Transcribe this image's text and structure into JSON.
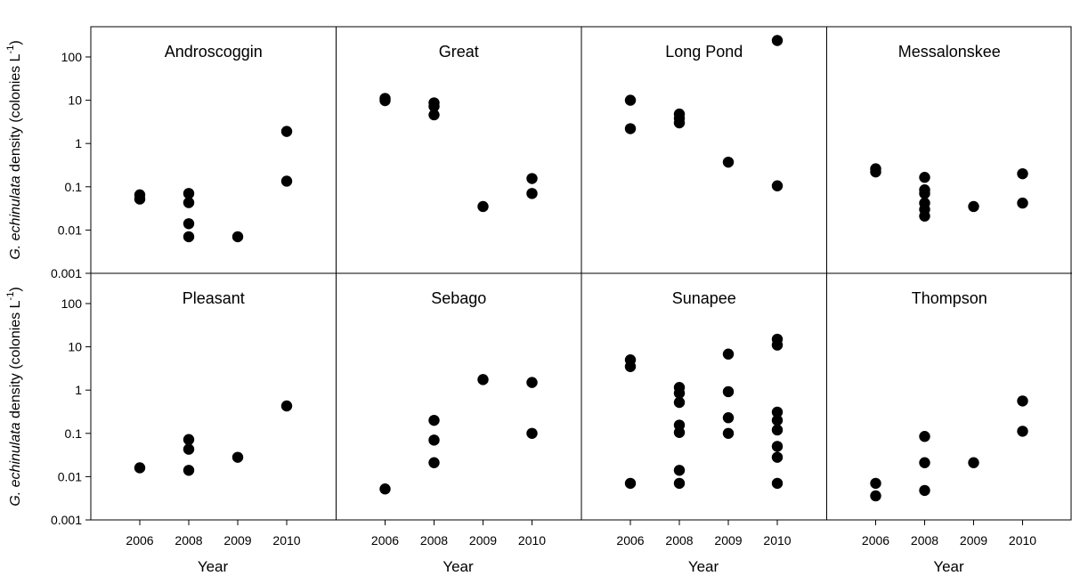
{
  "chart_data": {
    "type": "scatter",
    "y_scale": "log",
    "ylim": [
      0.001,
      500
    ],
    "y_ticks": [
      "0.001",
      "0.01",
      "0.1",
      "1",
      "10",
      "100"
    ],
    "x_categories": [
      "2006",
      "2008",
      "2009",
      "2010"
    ],
    "xlabel": "Year",
    "ylabel": "G. echinulata density (colonies L-1)",
    "grid": false,
    "legend": "none",
    "marker_color": "#000000",
    "panels": [
      {
        "title": "Androscoggin",
        "points": [
          {
            "x": "2006",
            "y": 0.065
          },
          {
            "x": "2006",
            "y": 0.052
          },
          {
            "x": "2008",
            "y": 0.07
          },
          {
            "x": "2008",
            "y": 0.043
          },
          {
            "x": "2008",
            "y": 0.014
          },
          {
            "x": "2008",
            "y": 0.007
          },
          {
            "x": "2009",
            "y": 0.007
          },
          {
            "x": "2010",
            "y": 1.9
          },
          {
            "x": "2010",
            "y": 0.135
          }
        ]
      },
      {
        "title": "Great",
        "points": [
          {
            "x": "2006",
            "y": 11
          },
          {
            "x": "2006",
            "y": 9.8
          },
          {
            "x": "2008",
            "y": 8.7
          },
          {
            "x": "2008",
            "y": 7.2
          },
          {
            "x": "2008",
            "y": 4.6
          },
          {
            "x": "2009",
            "y": 0.035
          },
          {
            "x": "2010",
            "y": 0.155
          },
          {
            "x": "2010",
            "y": 0.07
          }
        ]
      },
      {
        "title": "Long Pond",
        "points": [
          {
            "x": "2006",
            "y": 10
          },
          {
            "x": "2006",
            "y": 2.2
          },
          {
            "x": "2008",
            "y": 4.8
          },
          {
            "x": "2008",
            "y": 3.8
          },
          {
            "x": "2008",
            "y": 3.0
          },
          {
            "x": "2009",
            "y": 0.37
          },
          {
            "x": "2010",
            "y": 240
          },
          {
            "x": "2010",
            "y": 0.105
          }
        ]
      },
      {
        "title": "Messalonskee",
        "points": [
          {
            "x": "2006",
            "y": 0.26
          },
          {
            "x": "2006",
            "y": 0.22
          },
          {
            "x": "2008",
            "y": 0.165
          },
          {
            "x": "2008",
            "y": 0.085
          },
          {
            "x": "2008",
            "y": 0.07
          },
          {
            "x": "2008",
            "y": 0.042
          },
          {
            "x": "2008",
            "y": 0.03
          },
          {
            "x": "2008",
            "y": 0.021
          },
          {
            "x": "2009",
            "y": 0.035
          },
          {
            "x": "2010",
            "y": 0.2
          },
          {
            "x": "2010",
            "y": 0.042
          }
        ]
      },
      {
        "title": "Pleasant",
        "points": [
          {
            "x": "2006",
            "y": 0.016
          },
          {
            "x": "2008",
            "y": 0.072
          },
          {
            "x": "2008",
            "y": 0.043
          },
          {
            "x": "2008",
            "y": 0.014
          },
          {
            "x": "2009",
            "y": 0.028
          },
          {
            "x": "2010",
            "y": 0.43
          }
        ]
      },
      {
        "title": "Sebago",
        "points": [
          {
            "x": "2006",
            "y": 0.0052
          },
          {
            "x": "2008",
            "y": 0.2
          },
          {
            "x": "2008",
            "y": 0.07
          },
          {
            "x": "2008",
            "y": 0.021
          },
          {
            "x": "2009",
            "y": 1.75
          },
          {
            "x": "2010",
            "y": 1.5
          },
          {
            "x": "2010",
            "y": 0.1
          }
        ]
      },
      {
        "title": "Sunapee",
        "points": [
          {
            "x": "2006",
            "y": 5.0
          },
          {
            "x": "2006",
            "y": 3.5
          },
          {
            "x": "2006",
            "y": 0.007
          },
          {
            "x": "2008",
            "y": 1.15
          },
          {
            "x": "2008",
            "y": 0.85
          },
          {
            "x": "2008",
            "y": 0.52
          },
          {
            "x": "2008",
            "y": 0.155
          },
          {
            "x": "2008",
            "y": 0.105
          },
          {
            "x": "2008",
            "y": 0.014
          },
          {
            "x": "2008",
            "y": 0.007
          },
          {
            "x": "2009",
            "y": 6.8
          },
          {
            "x": "2009",
            "y": 0.92
          },
          {
            "x": "2009",
            "y": 0.23
          },
          {
            "x": "2009",
            "y": 0.1
          },
          {
            "x": "2010",
            "y": 15
          },
          {
            "x": "2010",
            "y": 11
          },
          {
            "x": "2010",
            "y": 0.31
          },
          {
            "x": "2010",
            "y": 0.2
          },
          {
            "x": "2010",
            "y": 0.12
          },
          {
            "x": "2010",
            "y": 0.05
          },
          {
            "x": "2010",
            "y": 0.028
          },
          {
            "x": "2010",
            "y": 0.007
          }
        ]
      },
      {
        "title": "Thompson",
        "points": [
          {
            "x": "2006",
            "y": 0.007
          },
          {
            "x": "2006",
            "y": 0.0036
          },
          {
            "x": "2008",
            "y": 0.085
          },
          {
            "x": "2008",
            "y": 0.021
          },
          {
            "x": "2008",
            "y": 0.0048
          },
          {
            "x": "2009",
            "y": 0.021
          },
          {
            "x": "2010",
            "y": 0.56
          },
          {
            "x": "2010",
            "y": 0.112
          }
        ]
      }
    ]
  },
  "axis": {
    "xlabel": "Year",
    "ylabel_prefix_italic": "G. echinulata",
    "ylabel_rest": " density (colonies L",
    "ylabel_superscript": "-1",
    "ylabel_close": ")"
  }
}
